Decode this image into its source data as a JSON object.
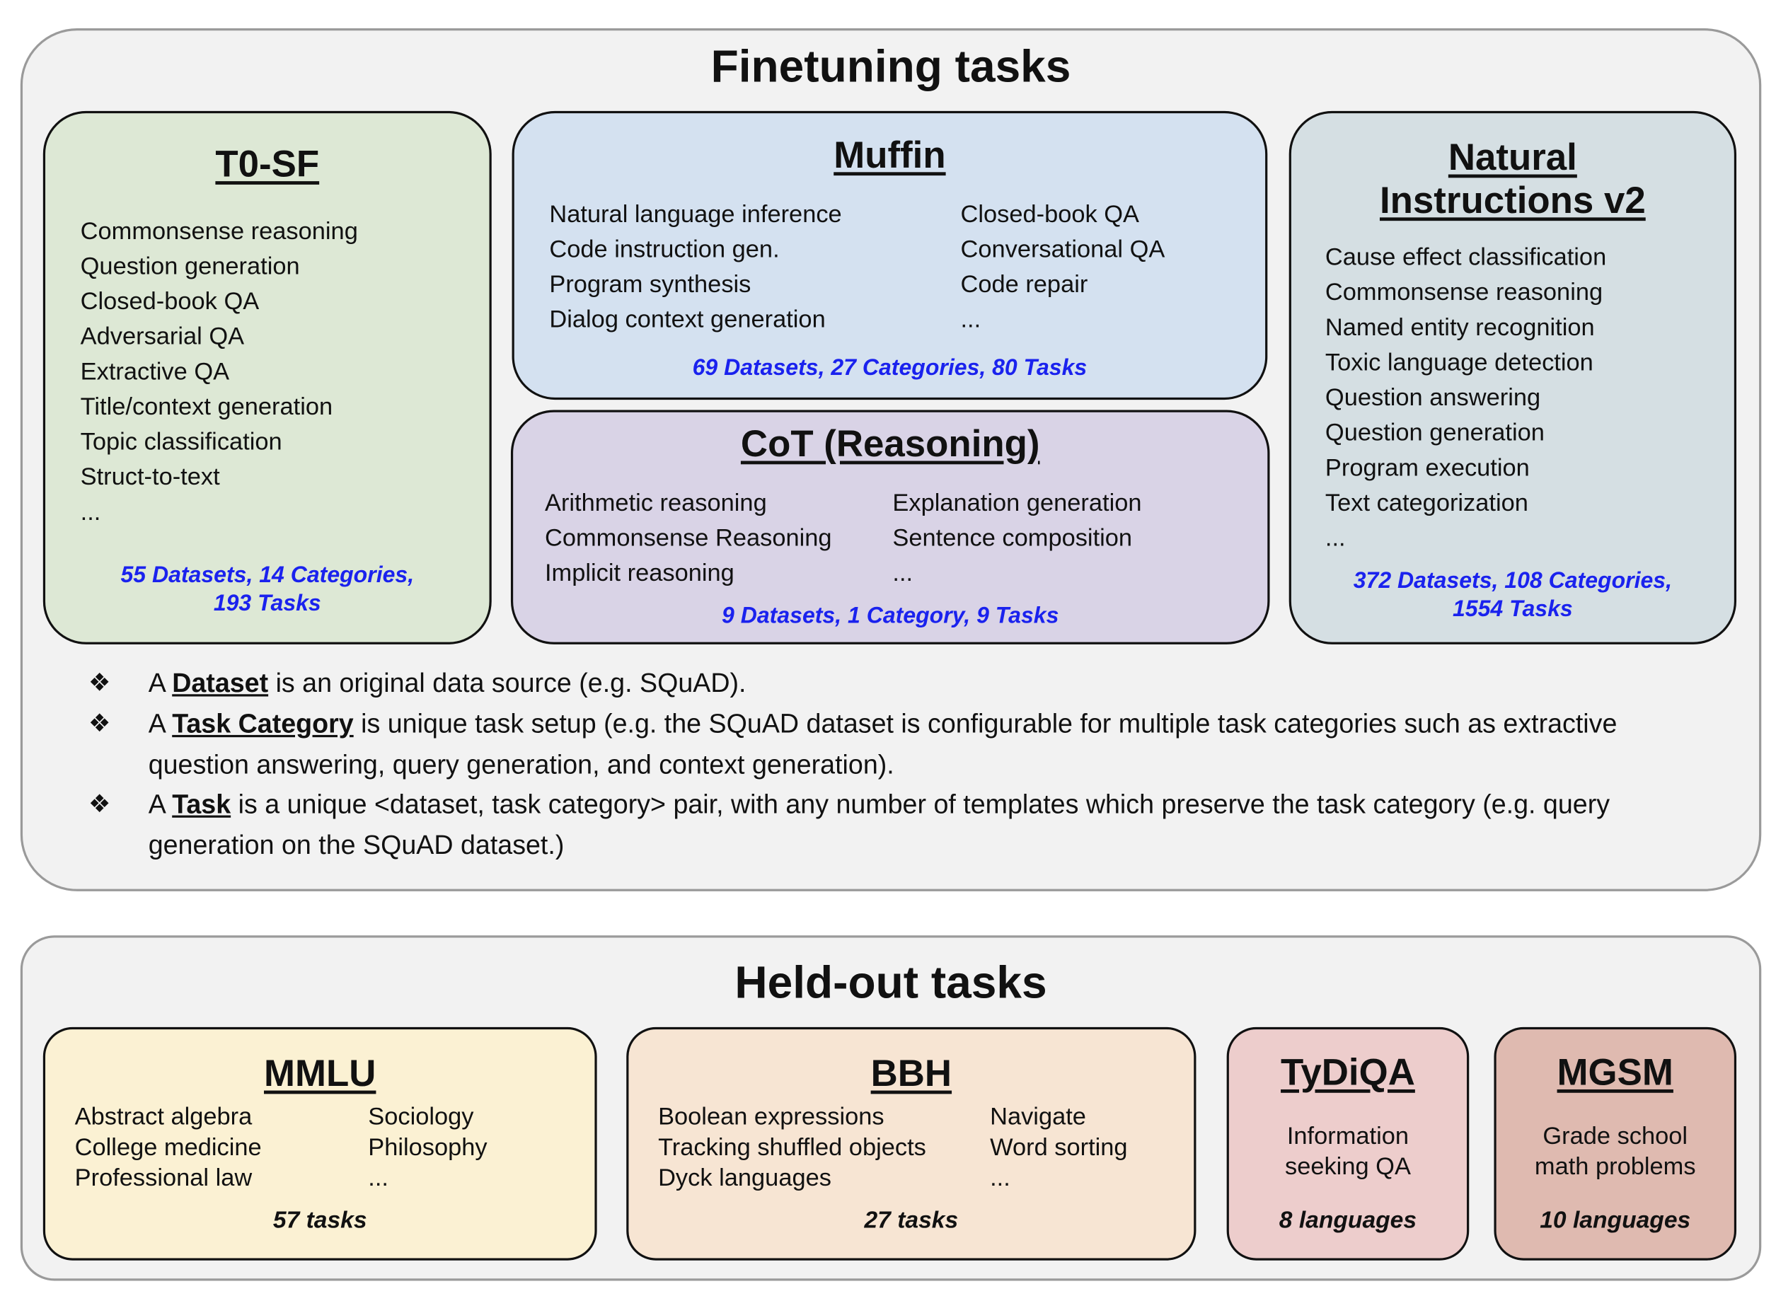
{
  "finetuning": {
    "title": "Finetuning tasks",
    "t0sf": {
      "title": "T0-SF",
      "items": [
        "Commonsense reasoning",
        "Question generation",
        "Closed-book QA",
        "Adversarial QA",
        "Extractive QA",
        "Title/context generation",
        "Topic classification",
        "Struct-to-text",
        "..."
      ],
      "stats": [
        "55 Datasets, 14 Categories,",
        "193 Tasks"
      ],
      "color": "#dde8d5"
    },
    "muffin": {
      "title": "Muffin",
      "left": [
        "Natural language inference",
        "Code instruction gen.",
        "Program synthesis",
        "Dialog context generation"
      ],
      "right": [
        "Closed-book QA",
        "Conversational QA",
        "Code repair",
        "..."
      ],
      "stats": "69 Datasets, 27 Categories, 80 Tasks",
      "color": "#d4e1f0"
    },
    "cot": {
      "title": "CoT (Reasoning)",
      "left": [
        "Arithmetic reasoning",
        "Commonsense Reasoning",
        "Implicit reasoning"
      ],
      "right": [
        "Explanation generation",
        "Sentence composition",
        "..."
      ],
      "stats": "9 Datasets, 1 Category, 9 Tasks",
      "color": "#d9d3e6"
    },
    "niv2": {
      "title": [
        "Natural",
        "Instructions v2"
      ],
      "items": [
        "Cause effect classification",
        "Commonsense reasoning",
        "Named entity recognition",
        "Toxic language detection",
        "Question answering",
        "Question generation",
        "Program execution",
        "Text categorization",
        "..."
      ],
      "stats": [
        "372 Datasets, 108 Categories,",
        "1554 Tasks"
      ],
      "color": "#d5dfe3"
    },
    "definitions": [
      {
        "pre": "A ",
        "term": "Dataset",
        "post": " is an original data source (e.g. SQuAD)."
      },
      {
        "pre": "A ",
        "term": "Task Category",
        "post": " is unique task setup (e.g. the SQuAD dataset is configurable for multiple task categories such as extractive question answering, query generation, and context generation)."
      },
      {
        "pre": "A ",
        "term": "Task",
        "post": " is a unique <dataset, task category> pair, with any number of templates which preserve the task category (e.g. query generation on the SQuAD dataset.)"
      }
    ],
    "bullet_symbol": "❖"
  },
  "heldout": {
    "title": "Held-out tasks",
    "mmlu": {
      "title": "MMLU",
      "left": [
        "Abstract algebra",
        "College medicine",
        "Professional law"
      ],
      "right": [
        "Sociology",
        "Philosophy",
        "..."
      ],
      "stats": "57 tasks",
      "color": "#fbf1d3"
    },
    "bbh": {
      "title": "BBH",
      "left": [
        "Boolean expressions",
        "Tracking shuffled objects",
        "Dyck languages"
      ],
      "right": [
        "Navigate",
        "Word sorting",
        "..."
      ],
      "stats": "27 tasks",
      "color": "#f7e5d3"
    },
    "tydiqa": {
      "title": "TyDiQA",
      "desc": [
        "Information",
        "seeking QA"
      ],
      "stats": "8 languages",
      "color": "#edcdcc"
    },
    "mgsm": {
      "title": "MGSM",
      "desc": [
        "Grade school",
        "math problems"
      ],
      "stats": "10 languages",
      "color": "#dfbab0"
    }
  },
  "colors": {
    "stats_blue": "#1a22ee",
    "panel_bg": "#f2f2f2"
  }
}
